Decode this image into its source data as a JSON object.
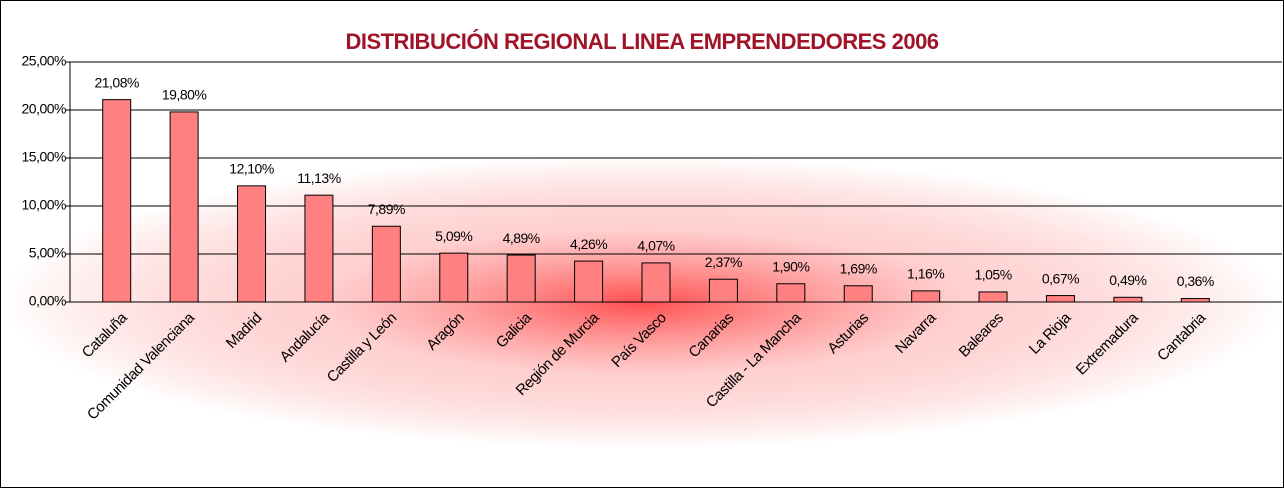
{
  "chart_data": {
    "type": "bar",
    "title": "DISTRIBUCIÓN REGIONAL LINEA EMPRENDEDORES 2006",
    "categories": [
      "Cataluña",
      "Comunidad Valenciana",
      "Madrid",
      "Andalucía",
      "Castilla y León",
      "Aragón",
      "Galicia",
      "Región de Murcia",
      "País Vasco",
      "Canarias",
      "Castilla - La Mancha",
      "Asturias",
      "Navarra",
      "Baleares",
      "La Rioja",
      "Extremadura",
      "Cantabria"
    ],
    "values": [
      21.08,
      19.8,
      12.1,
      11.13,
      7.89,
      5.09,
      4.89,
      4.26,
      4.07,
      2.37,
      1.9,
      1.69,
      1.16,
      1.05,
      0.67,
      0.49,
      0.36
    ],
    "value_labels": [
      "21,08%",
      "19,80%",
      "12,10%",
      "11,13%",
      "7,89%",
      "5,09%",
      "4,89%",
      "4,26%",
      "4,07%",
      "2,37%",
      "1,90%",
      "1,69%",
      "1,16%",
      "1,05%",
      "0,67%",
      "0,49%",
      "0,36%"
    ],
    "color": "#ff8080",
    "ylim": [
      0,
      25
    ],
    "yticks": [
      {
        "value": 0,
        "label": "0,00%"
      },
      {
        "value": 5,
        "label": "5,00%"
      },
      {
        "value": 10,
        "label": "10,00%"
      },
      {
        "value": 15,
        "label": "15,00%"
      },
      {
        "value": 20,
        "label": "20,00%"
      },
      {
        "value": 25,
        "label": "25,00%"
      }
    ],
    "grid": true
  }
}
